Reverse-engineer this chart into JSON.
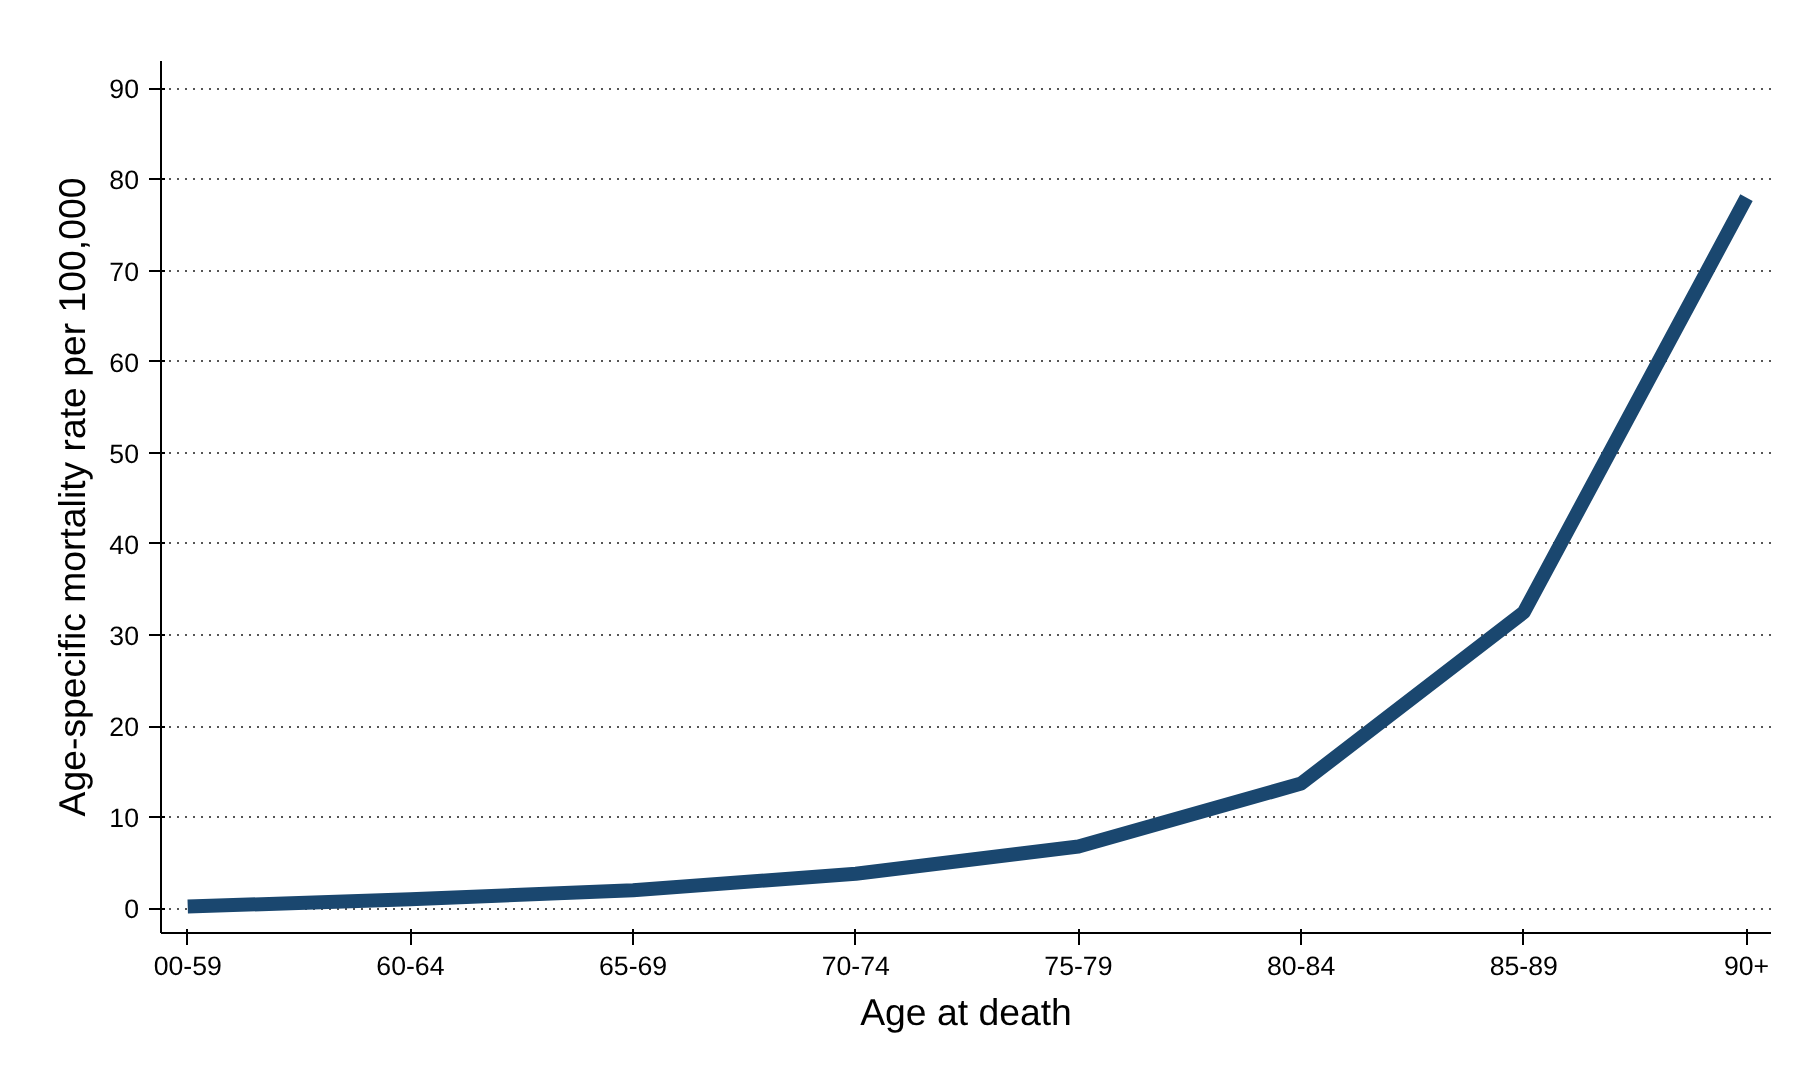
{
  "chart_data": {
    "type": "line",
    "xlabel": "Age at death",
    "ylabel": "Age-specific mortality rate per 100,000",
    "categories": [
      "00-59",
      "60-64",
      "65-69",
      "70-74",
      "75-79",
      "80-84",
      "85-89",
      "90+"
    ],
    "series": [
      {
        "color": "#1a476f",
        "values": [
          0.2,
          1.0,
          2.0,
          3.8,
          6.8,
          13.7,
          32.5,
          78.0
        ]
      }
    ],
    "ylim": [
      -2.7,
      93
    ],
    "yticks": [
      0,
      10,
      20,
      30,
      40,
      50,
      60,
      70,
      80,
      90
    ],
    "grid": "y",
    "line_style": "solid",
    "marker": "none"
  }
}
